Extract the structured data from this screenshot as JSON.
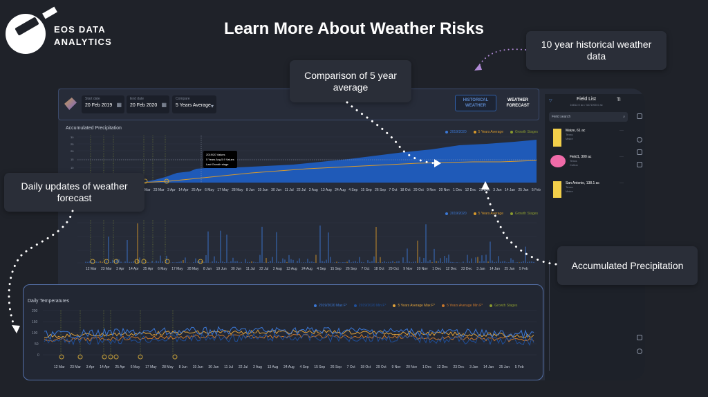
{
  "logo": {
    "line1": "EOS DATA",
    "line2": "ANALYTICS"
  },
  "page_title": "Learn More About Weather Risks",
  "callouts": {
    "historical": "10 year historical weather data",
    "comparison": "Comparison of 5 year average",
    "daily": "Daily updates of weather forecast",
    "accumulated": "Accumulated Precipitation"
  },
  "toolbar": {
    "start_label": "Start date",
    "start_value": "20 Feb 2019",
    "end_label": "End date",
    "end_value": "20 Feb 2020",
    "compare_label": "Compare",
    "compare_value": "5 Years Average",
    "historical_btn": "HISTORICAL WEATHER",
    "forecast_btn": "WEATHER FORECAST"
  },
  "accumulated_chart": {
    "title": "Accumulated Precipitation",
    "legend": [
      "2019/2020",
      "5 Years Average",
      "Growth Stages"
    ],
    "tooltip": [
      "2019/20 Values",
      "5 Years Avg 5.9 Values",
      "Last Growth stage"
    ],
    "x_ticks": [
      "12 Mar",
      "23 Mar",
      "3 Apr",
      "14 Apr",
      "25 Apr",
      "6 May",
      "17 May",
      "28 May",
      "8 Jun",
      "19 Jun",
      "30 Jun",
      "11 Jul",
      "22 Jul",
      "2 Aug",
      "13 Aug",
      "24 Aug",
      "4 Sep",
      "15 Sep",
      "26 Sep",
      "7 Oct",
      "18 Oct",
      "29 Oct",
      "9 Nov",
      "20 Nov",
      "1 Dec",
      "12 Dec",
      "23 Dec",
      "3 Jan",
      "14 Jan",
      "25 Jan",
      "5 Feb"
    ],
    "y_ticks": [
      "30",
      "25",
      "20",
      "15",
      "10",
      "5"
    ],
    "colors": {
      "current": "#1f5ab8",
      "average": "#d99a2b",
      "growth": "#8a9a2f"
    }
  },
  "daily_precip_chart": {
    "legend": [
      "2019/2020",
      "5 Years Average",
      "Growth Stages"
    ],
    "x_ticks": [
      "12 Mar",
      "23 Mar",
      "3 Apr",
      "14 Apr",
      "25 Apr",
      "6 May",
      "17 May",
      "28 May",
      "8 Jun",
      "19 Jun",
      "30 Jun",
      "11 Jul",
      "22 Jul",
      "2 Aug",
      "13 Aug",
      "24 Aug",
      "4 Sep",
      "15 Sep",
      "26 Sep",
      "7 Oct",
      "18 Oct",
      "29 Oct",
      "9 Nov",
      "20 Nov",
      "1 Dec",
      "12 Dec",
      "23 Dec",
      "3 Jan",
      "14 Jan",
      "25 Jan",
      "5 Feb"
    ]
  },
  "temps_chart": {
    "title": "Daily Temperatures",
    "legend": [
      "2019/2020 Max F°",
      "2019/2020 Min F°",
      "5 Years Average Max F°",
      "5 Years Average Min F°",
      "Growth Stages"
    ],
    "legend_colors": [
      "#3b78d6",
      "#1f4f9a",
      "#e0a23a",
      "#c9772c",
      "#8a9a2f"
    ],
    "y_ticks": [
      "200",
      "150",
      "100",
      "50",
      "0"
    ],
    "x_ticks": [
      "12 Mar",
      "23 Mar",
      "3 Apr",
      "14 Apr",
      "25 Apr",
      "6 May",
      "17 May",
      "28 May",
      "8 Jun",
      "19 Jun",
      "30 Jun",
      "11 Jul",
      "22 Jul",
      "2 Aug",
      "13 Aug",
      "24 Aug",
      "4 Sep",
      "15 Sep",
      "26 Sep",
      "7 Oct",
      "18 Oct",
      "29 Oct",
      "9 Nov",
      "20 Nov",
      "1 Dec",
      "12 Dec",
      "23 Dec",
      "3 Jan",
      "14 Jan",
      "25 Jan",
      "5 Feb"
    ]
  },
  "side_panel": {
    "title": "Field List",
    "subtitle": "16812.0 ac / 3471000.0 ac",
    "search_placeholder": "Field search",
    "fields": [
      {
        "name": "Maize, 61 ac",
        "meta1": "Texas",
        "meta2": "Maize",
        "color": "#f2cf4a",
        "shape": "rect"
      },
      {
        "name": "Field1, 300 ac",
        "meta1": "Texas",
        "meta2": "Cotton",
        "color": "#f06aa8",
        "shape": "circle"
      },
      {
        "name": "San Antonio, 138.1 ac",
        "meta1": "Texas",
        "meta2": "Maize",
        "color": "#f2cf4a",
        "shape": "rect"
      }
    ]
  }
}
